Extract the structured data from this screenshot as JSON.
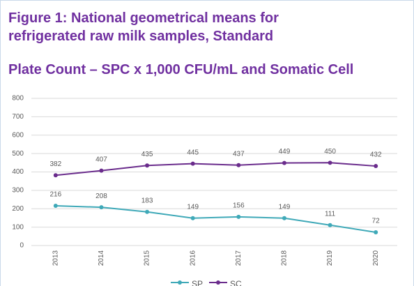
{
  "chart_data": {
    "type": "line",
    "title_lines": [
      "Figure 1: National geometrical means for",
      "refrigerated raw milk samples, Standard",
      "Plate Count – SPC x 1,000 CFU/mL and Somatic Cell"
    ],
    "categories": [
      "2013",
      "2014",
      "2015",
      "2016",
      "2017",
      "2018",
      "2019",
      "2020"
    ],
    "series": [
      {
        "name": "SP",
        "color": "#3fa9b8",
        "values": [
          216,
          208,
          183,
          149,
          156,
          149,
          111,
          72
        ]
      },
      {
        "name": "SC",
        "color": "#6a2c8c",
        "values": [
          382,
          407,
          435,
          445,
          437,
          449,
          450,
          432
        ]
      }
    ],
    "ylim": [
      0,
      800
    ],
    "yticks": [
      0,
      100,
      200,
      300,
      400,
      500,
      600,
      700,
      800
    ],
    "grid": true
  }
}
